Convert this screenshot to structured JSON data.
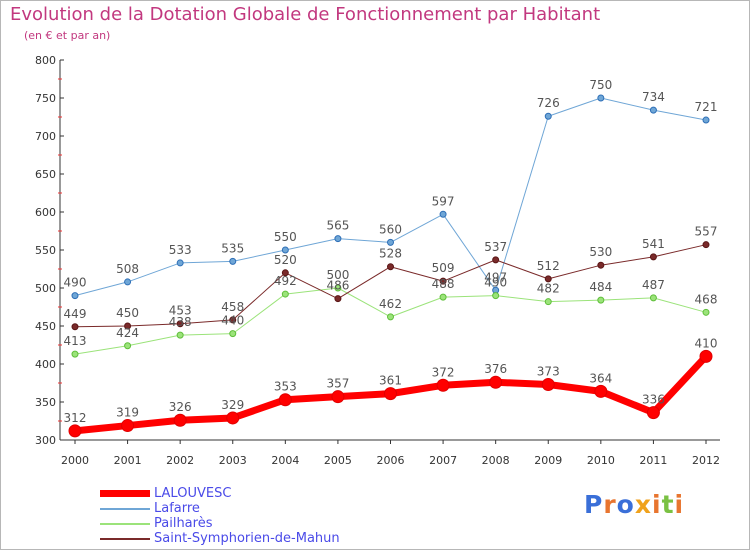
{
  "header": {
    "title": "Evolution de la Dotation Globale de Fonctionnement par Habitant",
    "subtitle": "(en € et par an)"
  },
  "logo": {
    "text": "Proxiti",
    "colors": [
      "#3a6fd8",
      "#e8752f",
      "#3a6fd8",
      "#f0a21c",
      "#e8752f",
      "#7ac143",
      "#e8752f"
    ]
  },
  "chart_data": {
    "type": "line",
    "title": "Evolution de la Dotation Globale de Fonctionnement par Habitant",
    "subtitle": "(en € et par an)",
    "xlabel": "",
    "ylabel": "",
    "ylim": [
      300,
      800
    ],
    "yticks": [
      300,
      350,
      400,
      450,
      500,
      550,
      600,
      650,
      700,
      750,
      800
    ],
    "x": [
      "2000",
      "2001",
      "2002",
      "2003",
      "2004",
      "2005",
      "2006",
      "2007",
      "2008",
      "2009",
      "2010",
      "2011",
      "2012"
    ],
    "grid": false,
    "legend_position": "bottom-left",
    "series": [
      {
        "name": "LALOUVESC",
        "color": "#ff0000",
        "width": 7,
        "marker": 6,
        "values": [
          312,
          319,
          326,
          329,
          353,
          357,
          361,
          372,
          376,
          373,
          364,
          336,
          410
        ]
      },
      {
        "name": "Lafarre",
        "color": "#6fa6d6",
        "width": 1,
        "marker": 3,
        "values": [
          490,
          508,
          533,
          535,
          550,
          565,
          560,
          597,
          497,
          726,
          750,
          734,
          721
        ]
      },
      {
        "name": "Pailharès",
        "color": "#9be37a",
        "width": 1,
        "marker": 3,
        "values": [
          413,
          424,
          438,
          440,
          492,
          500,
          462,
          488,
          490,
          482,
          484,
          487,
          468
        ]
      },
      {
        "name": "Saint-Symphorien-de-Mahun",
        "color": "#7a2a2a",
        "width": 1,
        "marker": 3,
        "values": [
          449,
          450,
          453,
          458,
          520,
          486,
          528,
          509,
          537,
          512,
          530,
          541,
          557
        ]
      }
    ]
  }
}
